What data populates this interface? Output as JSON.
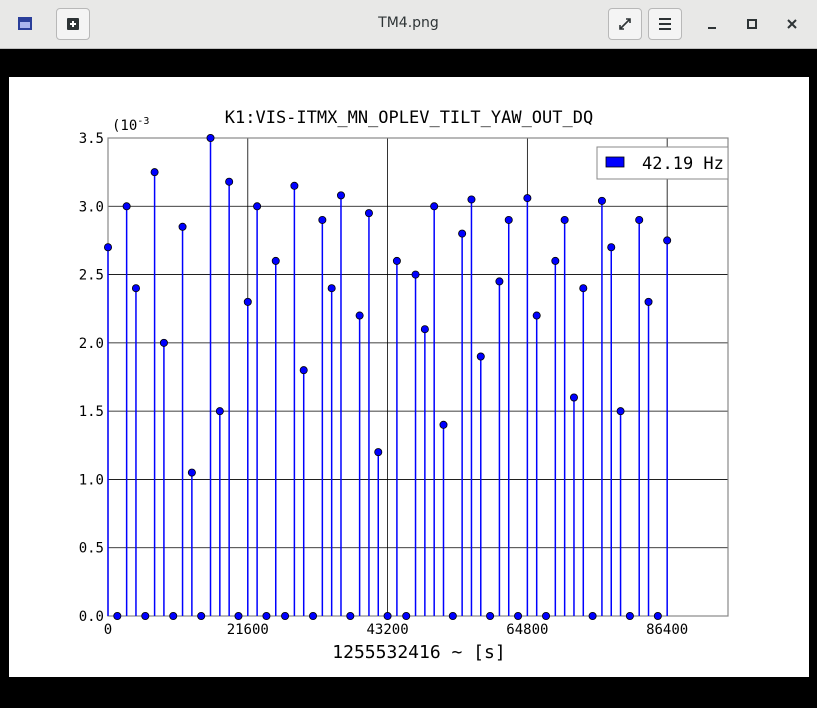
{
  "window": {
    "title": "TM4.png"
  },
  "chart_data": {
    "type": "stem",
    "title": "K1:VIS-ITMX_MN_OPLEV_TILT_YAW_OUT_DQ",
    "y_multiplier": {
      "base": "(10",
      "exponent": "-3"
    },
    "x_label": "1255532416 ~ [s]",
    "xlim": [
      0,
      95800
    ],
    "xticks": [
      0,
      21600,
      43200,
      64800,
      86400
    ],
    "ylim": [
      0,
      3.5
    ],
    "yticks": [
      {
        "value": 0,
        "label": "0.0"
      },
      0.5,
      {
        "value": 1,
        "label": "1.0"
      },
      1.5,
      {
        "value": 2,
        "label": "2.0"
      },
      2.5,
      {
        "value": 3,
        "label": "3.0"
      },
      3.5
    ],
    "grid": true,
    "legend": "upper right",
    "series": [
      {
        "name": "42.19 Hz",
        "color": "#0000ff",
        "x": [
          0,
          1440,
          2880,
          4320,
          5760,
          7200,
          8640,
          10080,
          11520,
          12960,
          14400,
          15840,
          17280,
          18720,
          20160,
          21600,
          23040,
          24480,
          25920,
          27360,
          28800,
          30240,
          31680,
          33120,
          34560,
          36000,
          37440,
          38880,
          40320,
          41760,
          43200,
          44640,
          46080,
          47520,
          48960,
          50400,
          51840,
          53280,
          54720,
          56160,
          57600,
          59040,
          60480,
          61920,
          63360,
          64800,
          66240,
          67680,
          69120,
          70560,
          72000,
          73440,
          74880,
          76320,
          77760,
          79200,
          80640,
          82080,
          83520,
          84960,
          86400
        ],
        "values": [
          2.7,
          0,
          3.0,
          2.4,
          0,
          3.25,
          2.0,
          0,
          2.85,
          1.05,
          0,
          3.5,
          1.5,
          3.18,
          0,
          2.3,
          3.0,
          0,
          2.6,
          0,
          3.15,
          1.8,
          0,
          2.9,
          2.4,
          3.08,
          0,
          2.2,
          2.95,
          1.2,
          0,
          2.6,
          0,
          2.5,
          2.1,
          3.0,
          1.4,
          0,
          2.8,
          3.05,
          1.9,
          0,
          2.45,
          2.9,
          0,
          3.06,
          2.2,
          0,
          2.6,
          2.9,
          1.6,
          2.4,
          0,
          3.04,
          2.7,
          1.5,
          0,
          2.9,
          2.3,
          0,
          2.75
        ]
      }
    ]
  }
}
